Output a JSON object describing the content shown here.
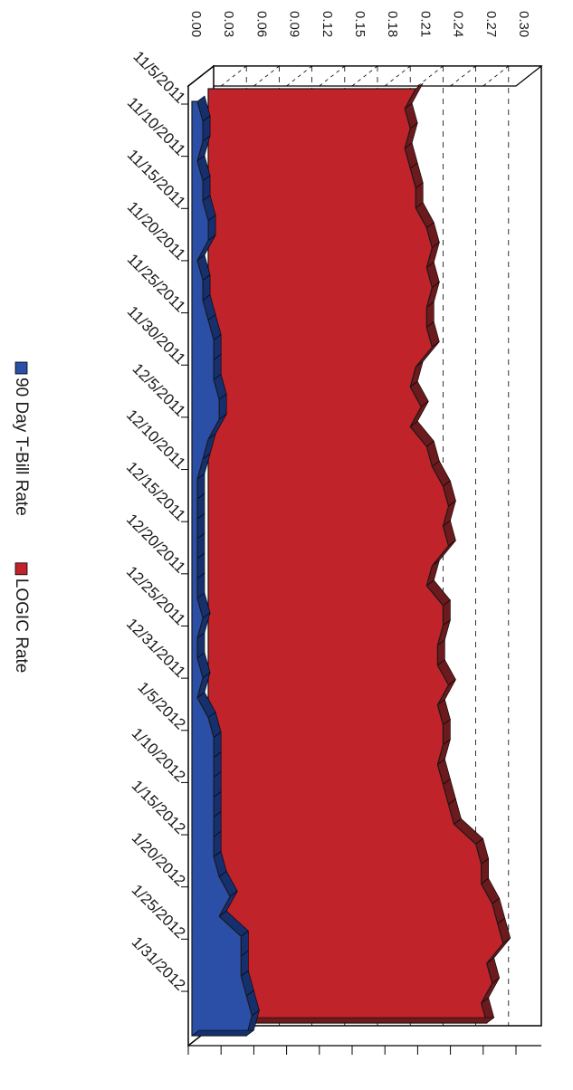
{
  "chart_data": {
    "type": "area",
    "orientation": "rotated-90-clockwise",
    "three_d": true,
    "stacking": "depth",
    "title": "",
    "xlabel": "",
    "ylabel": "",
    "ylim": [
      0,
      0.3
    ],
    "y_ticks": [
      "0.00",
      "0.03",
      "0.06",
      "0.09",
      "0.12",
      "0.15",
      "0.18",
      "0.21",
      "0.24",
      "0.27",
      "0.30"
    ],
    "x_tick_labels": [
      "11/5/2011",
      "11/10/2011",
      "11/15/2011",
      "11/20/2011",
      "11/25/2011",
      "11/30/2011",
      "12/5/2011",
      "12/10/2011",
      "12/15/2011",
      "12/20/2011",
      "12/25/2011",
      "12/31/2011",
      "1/5/2012",
      "1/10/2012",
      "1/15/2012",
      "1/20/2012",
      "1/25/2012",
      "1/31/2012"
    ],
    "grid": "dashed-horizontal",
    "legend_position": "bottom",
    "series": [
      {
        "name": "90 Day T-Bill Rate",
        "color": "#2b4ea6",
        "side_color": "#16306e",
        "values": [
          0.005,
          0.01,
          0.01,
          0.005,
          0.01,
          0.01,
          0.015,
          0.015,
          0.005,
          0.01,
          0.01,
          0.015,
          0.02,
          0.02,
          0.02,
          0.025,
          0.025,
          0.015,
          0.01,
          0.005,
          0.005,
          0.005,
          0.005,
          0.005,
          0.005,
          0.005,
          0.01,
          0.005,
          0.005,
          0.01,
          0.005,
          0.015,
          0.02,
          0.02,
          0.02,
          0.02,
          0.02,
          0.02,
          0.02,
          0.025,
          0.035,
          0.025,
          0.045,
          0.045,
          0.045,
          0.05,
          0.055,
          0.05
        ]
      },
      {
        "name": "LOGIC Rate",
        "color": "#c0232a",
        "side_color": "#6b1a1d",
        "values": [
          0.19,
          0.18,
          0.185,
          0.18,
          0.185,
          0.19,
          0.19,
          0.2,
          0.205,
          0.2,
          0.205,
          0.2,
          0.2,
          0.205,
          0.19,
          0.185,
          0.195,
          0.185,
          0.2,
          0.205,
          0.215,
          0.22,
          0.215,
          0.22,
          0.205,
          0.2,
          0.215,
          0.215,
          0.21,
          0.21,
          0.22,
          0.21,
          0.215,
          0.215,
          0.21,
          0.215,
          0.22,
          0.225,
          0.245,
          0.25,
          0.25,
          0.26,
          0.265,
          0.27,
          0.255,
          0.26,
          0.25,
          0.255
        ]
      }
    ]
  }
}
